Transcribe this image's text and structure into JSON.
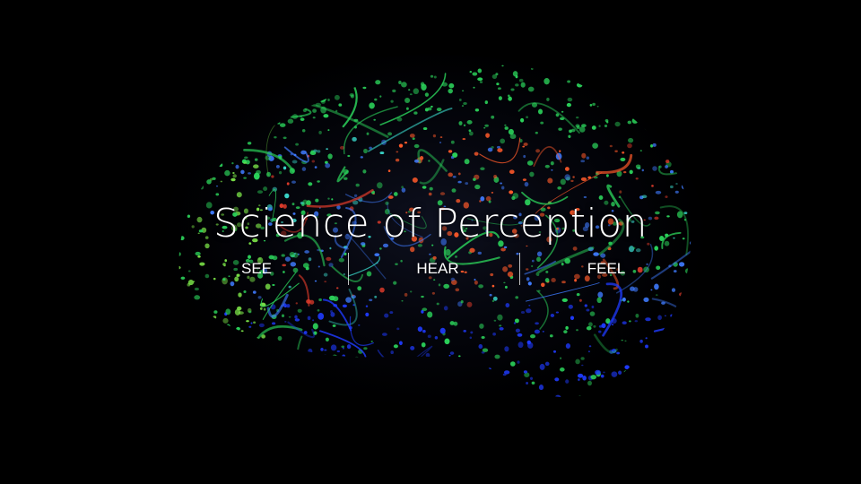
{
  "hero": {
    "title": "Science of Perception"
  },
  "nav": {
    "items": [
      {
        "label": "SEE"
      },
      {
        "label": "HEAR"
      },
      {
        "label": "FEEL"
      }
    ]
  },
  "colors": {
    "background": "#000000",
    "text": "#ffffff",
    "palette": [
      "#2bd15a",
      "#3f7bff",
      "#1f3bff",
      "#ff5a2a",
      "#d93a2a",
      "#3ad6c9",
      "#7ee84a"
    ]
  }
}
